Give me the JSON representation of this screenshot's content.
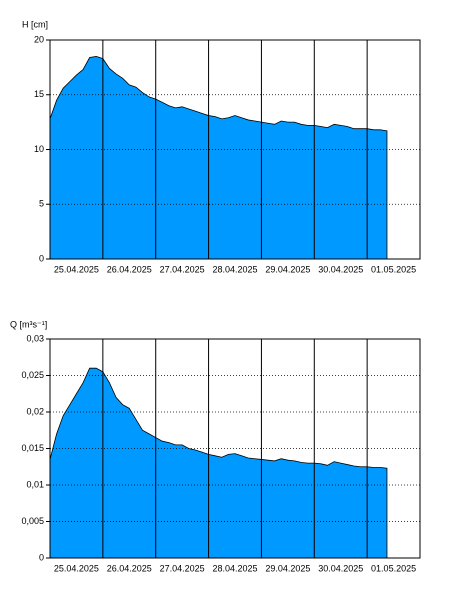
{
  "chart_data": [
    {
      "type": "area",
      "y_label": "H [cm]",
      "color": "#0099ff",
      "categories": [
        "25.04.2025",
        "26.04.2025",
        "27.04.2025",
        "28.04.2025",
        "29.04.2025",
        "30.04.2025",
        "01.05.2025"
      ],
      "values": [
        [
          12.8,
          14.5,
          15.6,
          16.2,
          16.8,
          17.3,
          18.4,
          18.5
        ],
        [
          18.3,
          17.4,
          16.9,
          16.5,
          15.9,
          15.7,
          15.2,
          14.8
        ],
        [
          14.6,
          14.3,
          14.0,
          13.8,
          13.9,
          13.7,
          13.5,
          13.3
        ],
        [
          13.1,
          13.0,
          12.8,
          12.9,
          13.1,
          12.9,
          12.7,
          12.6
        ],
        [
          12.5,
          12.4,
          12.3,
          12.6,
          12.5,
          12.5,
          12.3,
          12.2
        ],
        [
          12.2,
          12.1,
          12.0,
          12.3,
          12.2,
          12.1,
          11.9,
          11.9
        ],
        [
          11.9,
          11.8,
          11.8,
          11.7,
          null,
          null,
          null,
          null
        ]
      ],
      "ylim": [
        0,
        20
      ],
      "yticks": [
        0,
        5,
        10,
        15,
        20
      ],
      "grid": true
    },
    {
      "type": "area",
      "y_label": "Q [m³s⁻¹]",
      "color": "#0099ff",
      "categories": [
        "25.04.2025",
        "26.04.2025",
        "27.04.2025",
        "28.04.2025",
        "29.04.2025",
        "30.04.2025",
        "01.05.2025"
      ],
      "values": [
        [
          0.0135,
          0.017,
          0.0195,
          0.021,
          0.0225,
          0.024,
          0.026,
          0.026
        ],
        [
          0.0255,
          0.024,
          0.022,
          0.021,
          0.0205,
          0.019,
          0.0175,
          0.017
        ],
        [
          0.0165,
          0.016,
          0.0158,
          0.0155,
          0.0155,
          0.015,
          0.0148,
          0.0145
        ],
        [
          0.0142,
          0.014,
          0.0138,
          0.0142,
          0.0143,
          0.014,
          0.0137,
          0.0136
        ],
        [
          0.0135,
          0.0134,
          0.0133,
          0.0136,
          0.0134,
          0.0133,
          0.0131,
          0.013
        ],
        [
          0.013,
          0.0129,
          0.0127,
          0.0132,
          0.013,
          0.0128,
          0.0126,
          0.0125
        ],
        [
          0.0125,
          0.0124,
          0.0124,
          0.0123,
          null,
          null,
          null,
          null
        ]
      ],
      "ylim": [
        0,
        0.03
      ],
      "yticks": [
        0,
        {
          "value": 0.005,
          "label": "0,005"
        },
        {
          "value": 0.01,
          "label": "0,01"
        },
        {
          "value": 0.015,
          "label": "0,015"
        },
        {
          "value": 0.02,
          "label": "0,02"
        },
        {
          "value": 0.025,
          "label": "0,025"
        },
        {
          "value": 0.03,
          "label": "0,03"
        }
      ],
      "grid": true
    }
  ]
}
